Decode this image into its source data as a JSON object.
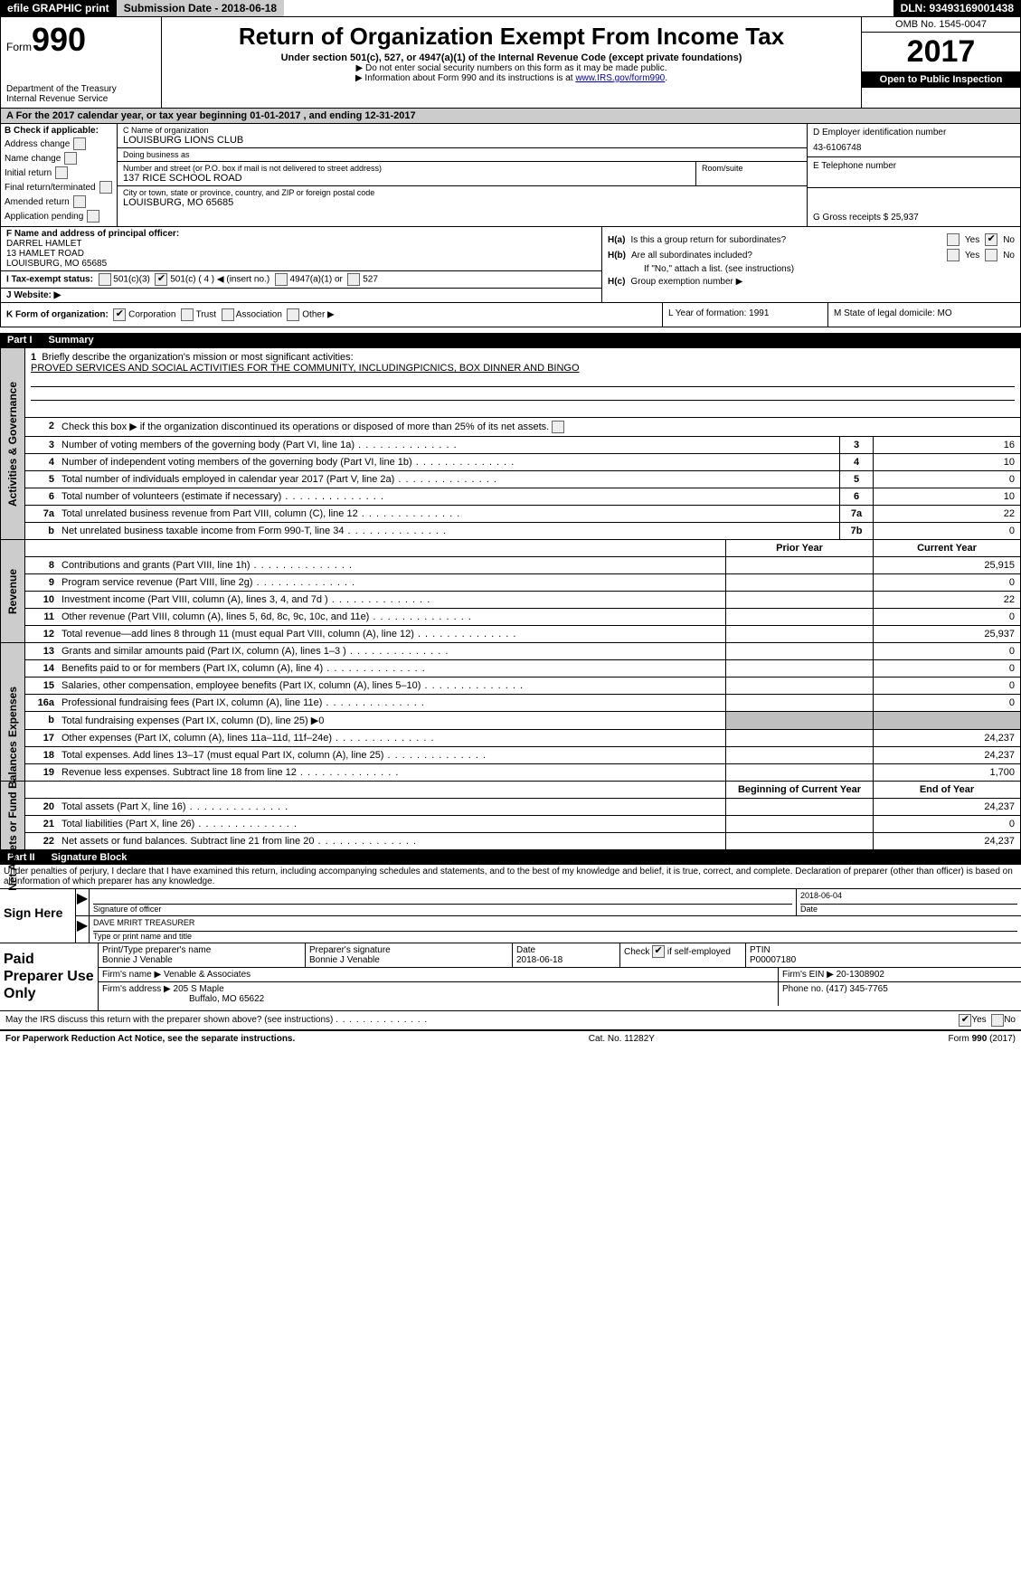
{
  "topbar": {
    "efile": "efile GRAPHIC print",
    "submission_label": "Submission Date - 2018-06-18",
    "dln": "DLN: 93493169001438"
  },
  "header": {
    "form_prefix": "Form",
    "form_number": "990",
    "dept1": "Department of the Treasury",
    "dept2": "Internal Revenue Service",
    "title": "Return of Organization Exempt From Income Tax",
    "subtitle": "Under section 501(c), 527, or 4947(a)(1) of the Internal Revenue Code (except private foundations)",
    "note1": "▶ Do not enter social security numbers on this form as it may be made public.",
    "note2_pre": "▶ Information about Form 990 and its instructions is at ",
    "note2_link": "www.IRS.gov/form990",
    "note2_post": ".",
    "omb": "OMB No. 1545-0047",
    "year": "2017",
    "open": "Open to Public Inspection"
  },
  "rowA": "A   For the 2017 calendar year, or tax year beginning 01-01-2017       , and ending 12-31-2017",
  "colB": {
    "title": "B Check if applicable:",
    "items": [
      "Address change",
      "Name change",
      "Initial return",
      "Final return/terminated",
      "Amended return",
      "Application pending"
    ]
  },
  "colC": {
    "name_label": "C Name of organization",
    "name": "LOUISBURG LIONS CLUB",
    "dba_label": "Doing business as",
    "dba": "",
    "street_label": "Number and street (or P.O. box if mail is not delivered to street address)",
    "street": "137 RICE SCHOOL ROAD",
    "room_label": "Room/suite",
    "room": "",
    "city_label": "City or town, state or province, country, and ZIP or foreign postal code",
    "city": "LOUISBURG, MO  65685",
    "officer_label": "F Name and address of principal officer:",
    "officer_name": "DARREL HAMLET",
    "officer_street": "13 HAMLET ROAD",
    "officer_city": "LOUISBURG, MO  65685"
  },
  "colD": {
    "ein_label": "D Employer identification number",
    "ein": "43-6106748",
    "phone_label": "E Telephone number",
    "phone": "",
    "gross_label": "G Gross receipts $ 25,937"
  },
  "rowI": {
    "label": "I    Tax-exempt status:",
    "c3": "501(c)(3)",
    "c": "501(c) ( 4 ) ◀ (insert no.)",
    "a1": "4947(a)(1) or",
    "s527": "527"
  },
  "rowJ": "J   Website: ▶",
  "rowH": {
    "ha_label": "H(a)",
    "ha_text": "Is this a group return for subordinates?",
    "hb_label": "H(b)",
    "hb_text": "Are all subordinates included?",
    "hb_note": "If \"No,\" attach a list. (see instructions)",
    "hc_label": "H(c)",
    "hc_text": "Group exemption number ▶",
    "yes": "Yes",
    "no": "No"
  },
  "rowK": {
    "label": "K Form of organization:",
    "corp": "Corporation",
    "trust": "Trust",
    "assoc": "Association",
    "other": "Other ▶"
  },
  "rowL": {
    "label": "L Year of formation: 1991"
  },
  "rowM": {
    "label": "M State of legal domicile: MO"
  },
  "part1": {
    "bar": "Part I",
    "title": "Summary"
  },
  "sidebar": {
    "s1": "Activities & Governance",
    "s2": "Revenue",
    "s3": "Expenses",
    "s4": "Net Assets or Fund Balances"
  },
  "summary": {
    "l1_label": "Briefly describe the organization's mission or most significant activities:",
    "l1_text": "PROVED SERVICES AND SOCIAL ACTIVITIES FOR THE COMMUNITY, INCLUDINGPICNICS, BOX DINNER AND BINGO",
    "l2": "Check this box ▶     if the organization discontinued its operations or disposed of more than 25% of its net assets.",
    "rows_gov": [
      {
        "n": "3",
        "d": "Number of voting members of the governing body (Part VI, line 1a)",
        "box": "3",
        "v": "16"
      },
      {
        "n": "4",
        "d": "Number of independent voting members of the governing body (Part VI, line 1b)",
        "box": "4",
        "v": "10"
      },
      {
        "n": "5",
        "d": "Total number of individuals employed in calendar year 2017 (Part V, line 2a)",
        "box": "5",
        "v": "0"
      },
      {
        "n": "6",
        "d": "Total number of volunteers (estimate if necessary)",
        "box": "6",
        "v": "10"
      },
      {
        "n": "7a",
        "d": "Total unrelated business revenue from Part VIII, column (C), line 12",
        "box": "7a",
        "v": "22"
      },
      {
        "n": "b",
        "d": "Net unrelated business taxable income from Form 990-T, line 34",
        "box": "7b",
        "v": "0"
      }
    ],
    "head_prior": "Prior Year",
    "head_curr": "Current Year",
    "rows_rev": [
      {
        "n": "8",
        "d": "Contributions and grants (Part VIII, line 1h)",
        "p": "",
        "c": "25,915"
      },
      {
        "n": "9",
        "d": "Program service revenue (Part VIII, line 2g)",
        "p": "",
        "c": "0"
      },
      {
        "n": "10",
        "d": "Investment income (Part VIII, column (A), lines 3, 4, and 7d )",
        "p": "",
        "c": "22"
      },
      {
        "n": "11",
        "d": "Other revenue (Part VIII, column (A), lines 5, 6d, 8c, 9c, 10c, and 11e)",
        "p": "",
        "c": "0"
      },
      {
        "n": "12",
        "d": "Total revenue—add lines 8 through 11 (must equal Part VIII, column (A), line 12)",
        "p": "",
        "c": "25,937"
      }
    ],
    "rows_exp": [
      {
        "n": "13",
        "d": "Grants and similar amounts paid (Part IX, column (A), lines 1–3 )",
        "p": "",
        "c": "0"
      },
      {
        "n": "14",
        "d": "Benefits paid to or for members (Part IX, column (A), line 4)",
        "p": "",
        "c": "0"
      },
      {
        "n": "15",
        "d": "Salaries, other compensation, employee benefits (Part IX, column (A), lines 5–10)",
        "p": "",
        "c": "0"
      },
      {
        "n": "16a",
        "d": "Professional fundraising fees (Part IX, column (A), line 11e)",
        "p": "",
        "c": "0"
      },
      {
        "n": "b",
        "d": "Total fundraising expenses (Part IX, column (D), line 25) ▶0",
        "p": "gray",
        "c": "gray"
      },
      {
        "n": "17",
        "d": "Other expenses (Part IX, column (A), lines 11a–11d, 11f–24e)",
        "p": "",
        "c": "24,237"
      },
      {
        "n": "18",
        "d": "Total expenses. Add lines 13–17 (must equal Part IX, column (A), line 25)",
        "p": "",
        "c": "24,237"
      },
      {
        "n": "19",
        "d": "Revenue less expenses. Subtract line 18 from line 12",
        "p": "",
        "c": "1,700"
      }
    ],
    "head_beg": "Beginning of Current Year",
    "head_end": "End of Year",
    "rows_net": [
      {
        "n": "20",
        "d": "Total assets (Part X, line 16)",
        "p": "",
        "c": "24,237"
      },
      {
        "n": "21",
        "d": "Total liabilities (Part X, line 26)",
        "p": "",
        "c": "0"
      },
      {
        "n": "22",
        "d": "Net assets or fund balances. Subtract line 21 from line 20",
        "p": "",
        "c": "24,237"
      }
    ]
  },
  "part2": {
    "bar": "Part II",
    "title": "Signature Block"
  },
  "sig": {
    "decl": "Under penalties of perjury, I declare that I have examined this return, including accompanying schedules and statements, and to the best of my knowledge and belief, it is true, correct, and complete. Declaration of preparer (other than officer) is based on all information of which preparer has any knowledge.",
    "sign_here": "Sign Here",
    "sig_officer": "Signature of officer",
    "date_lbl": "Date",
    "date": "2018-06-04",
    "name": "DAVE MRIRT  TREASURER",
    "name_lbl": "Type or print name and title"
  },
  "prep": {
    "label": "Paid Preparer Use Only",
    "p_name_lbl": "Print/Type preparer's name",
    "p_name": "Bonnie J Venable",
    "p_sig_lbl": "Preparer's signature",
    "p_sig": "Bonnie J Venable",
    "p_date_lbl": "Date",
    "p_date": "2018-06-18",
    "p_self": "Check       if self-employed",
    "ptin_lbl": "PTIN",
    "ptin": "P00007180",
    "firm_name_lbl": "Firm's name    ▶",
    "firm_name": "Venable & Associates",
    "firm_ein_lbl": "Firm's EIN ▶",
    "firm_ein": "20-1308902",
    "firm_addr_lbl": "Firm's address ▶",
    "firm_addr1": "205 S Maple",
    "firm_addr2": "Buffalo, MO  65622",
    "phone_lbl": "Phone no.",
    "phone": "(417) 345-7765"
  },
  "irs_line": "May the IRS discuss this return with the preparer shown above? (see instructions)",
  "footer": {
    "left": "For Paperwork Reduction Act Notice, see the separate instructions.",
    "mid": "Cat. No. 11282Y",
    "right": "Form 990 (2017)"
  }
}
